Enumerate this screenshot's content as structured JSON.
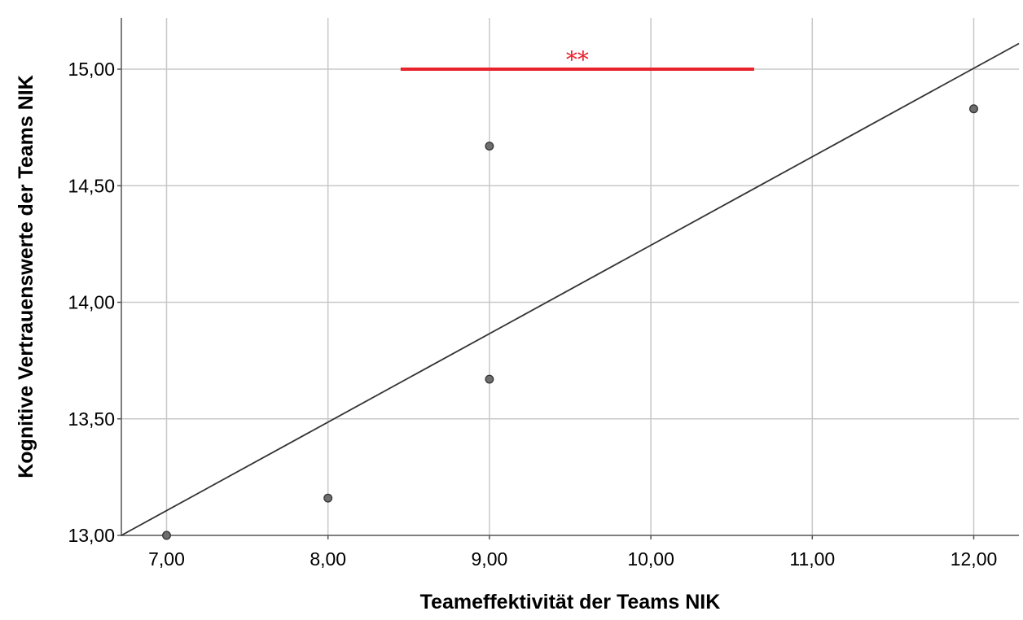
{
  "chart_data": {
    "type": "scatter",
    "xlabel": "Teameffektivität der Teams NIK",
    "ylabel": "Kognitive Vertrauenswerte der Teams NIK",
    "xlim": [
      6.72,
      12.28
    ],
    "ylim": [
      13.0,
      15.22
    ],
    "x_ticks": [
      {
        "value": 7,
        "label": "7,00"
      },
      {
        "value": 8,
        "label": "8,00"
      },
      {
        "value": 9,
        "label": "9,00"
      },
      {
        "value": 10,
        "label": "10,00"
      },
      {
        "value": 11,
        "label": "11,00"
      },
      {
        "value": 12,
        "label": "12,00"
      }
    ],
    "y_ticks": [
      {
        "value": 13.0,
        "label": "13,00"
      },
      {
        "value": 13.5,
        "label": "13,50"
      },
      {
        "value": 14.0,
        "label": "14,00"
      },
      {
        "value": 14.5,
        "label": "14,50"
      },
      {
        "value": 15.0,
        "label": "15,00"
      }
    ],
    "grid": true,
    "points": [
      {
        "x": 7,
        "y": 13.0
      },
      {
        "x": 8,
        "y": 13.16
      },
      {
        "x": 9,
        "y": 13.67
      },
      {
        "x": 9,
        "y": 14.67
      },
      {
        "x": 12,
        "y": 14.83
      }
    ],
    "fit_line": {
      "x": [
        6.72,
        12.28
      ],
      "y": [
        13.0,
        15.11
      ]
    },
    "annotation": {
      "text": "**",
      "x_range": [
        8.45,
        10.64
      ],
      "y": 15.0,
      "color": "#e8232b"
    },
    "colors": {
      "grid": "#c8c8c8",
      "axis": "#555555",
      "point_fill": "#6e6e6e",
      "point_stroke": "#333333",
      "fit_line": "#333333"
    }
  }
}
